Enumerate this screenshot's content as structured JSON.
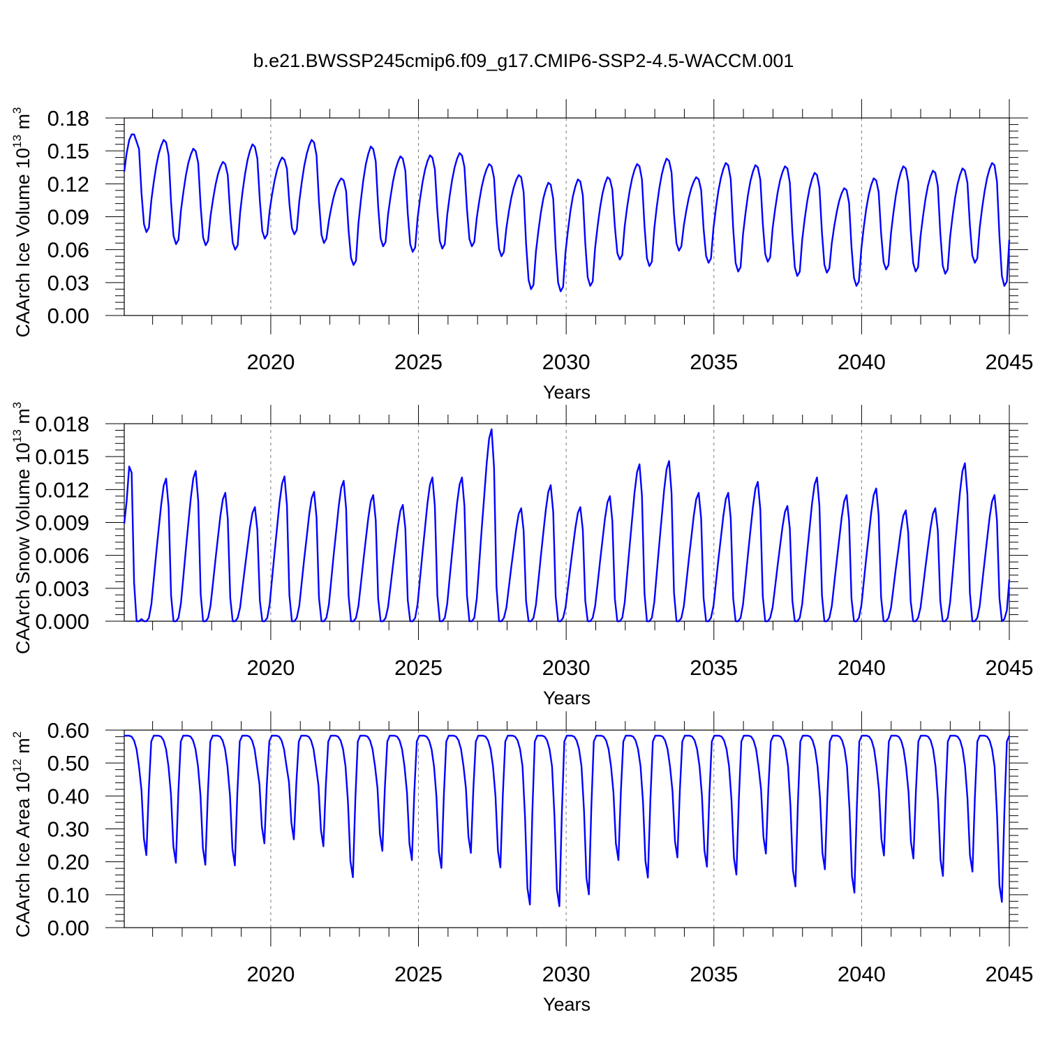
{
  "figure": {
    "title": "b.e21.BWSSP245cmip6.f09_g17.CMIP6-SSP2-4.5-WACCM.001"
  },
  "chart_data": [
    {
      "type": "line",
      "id": "ice_volume",
      "ylabel": {
        "main": "CAArch Ice Volume 10",
        "exp": "13",
        "unit": " m",
        "unit_exp": "3"
      },
      "xlabel": "Years",
      "xlim": [
        2015.04,
        2045.0
      ],
      "ylim": [
        0.0,
        0.18
      ],
      "yticks": [
        "0.00",
        "0.03",
        "0.06",
        "0.09",
        "0.12",
        "0.15",
        "0.18"
      ],
      "xticks": [
        "2020",
        "2025",
        "2030",
        "2035",
        "2040",
        "2045"
      ],
      "grid": "vertical dashed at major x ticks",
      "series": [
        {
          "color": "#0000ff",
          "peaks": [
            0.165,
            0.16,
            0.152,
            0.14,
            0.156,
            0.144,
            0.16,
            0.125,
            0.154,
            0.145,
            0.146,
            0.148,
            0.138,
            0.128,
            0.121,
            0.124,
            0.126,
            0.138,
            0.143,
            0.126,
            0.139,
            0.137,
            0.136,
            0.13,
            0.116,
            0.125,
            0.136,
            0.132,
            0.134,
            0.139
          ],
          "troughs": [
            0.076,
            0.065,
            0.064,
            0.06,
            0.07,
            0.074,
            0.066,
            0.046,
            0.063,
            0.058,
            0.061,
            0.063,
            0.054,
            0.024,
            0.022,
            0.027,
            0.051,
            0.045,
            0.059,
            0.048,
            0.04,
            0.049,
            0.036,
            0.039,
            0.027,
            0.042,
            0.04,
            0.038,
            0.048,
            0.027
          ],
          "start": 0.131,
          "end": 0.069
        }
      ]
    },
    {
      "type": "line",
      "id": "snow_volume",
      "ylabel": {
        "main": "CAArch Snow Volume 10",
        "exp": "13",
        "unit": " m",
        "unit_exp": "3"
      },
      "xlabel": "Years",
      "xlim": [
        2015.04,
        2045.0
      ],
      "ylim": [
        0.0,
        0.018
      ],
      "yticks": [
        "0.000",
        "0.003",
        "0.006",
        "0.009",
        "0.012",
        "0.015",
        "0.018"
      ],
      "xticks": [
        "2020",
        "2025",
        "2030",
        "2035",
        "2040",
        "2045"
      ],
      "grid": "vertical dashed at major x ticks",
      "series": [
        {
          "color": "#0000ff",
          "peaks": [
            0.0141,
            0.013,
            0.0137,
            0.0117,
            0.0104,
            0.0132,
            0.0118,
            0.0128,
            0.0115,
            0.0106,
            0.0131,
            0.0131,
            0.0175,
            0.0103,
            0.0124,
            0.0104,
            0.0114,
            0.0143,
            0.0146,
            0.0117,
            0.0117,
            0.0127,
            0.0105,
            0.0131,
            0.0115,
            0.0121,
            0.0101,
            0.0103,
            0.0144,
            0.0115
          ],
          "start": 0.0089,
          "end": 0.0038
        }
      ]
    },
    {
      "type": "line",
      "id": "ice_area",
      "ylabel": {
        "main": "CAArch Ice Area 10",
        "exp": "12",
        "unit": " m",
        "unit_exp": "2"
      },
      "xlabel": "Years",
      "xlim": [
        2015.04,
        2045.0
      ],
      "ylim": [
        0.0,
        0.6
      ],
      "yticks": [
        "0.00",
        "0.10",
        "0.20",
        "0.30",
        "0.40",
        "0.50",
        "0.60"
      ],
      "xticks": [
        "2020",
        "2025",
        "2030",
        "2035",
        "2040",
        "2045"
      ],
      "grid": "horizontal line at 0.60; vertical dashed at major x ticks",
      "series": [
        {
          "color": "#0000ff",
          "max": 0.583,
          "minima": [
            0.22,
            0.197,
            0.191,
            0.189,
            0.256,
            0.268,
            0.247,
            0.153,
            0.233,
            0.205,
            0.181,
            0.227,
            0.183,
            0.07,
            0.065,
            0.101,
            0.205,
            0.152,
            0.213,
            0.185,
            0.161,
            0.225,
            0.125,
            0.177,
            0.106,
            0.219,
            0.21,
            0.157,
            0.17,
            0.078
          ],
          "end": 0.583
        }
      ]
    }
  ]
}
